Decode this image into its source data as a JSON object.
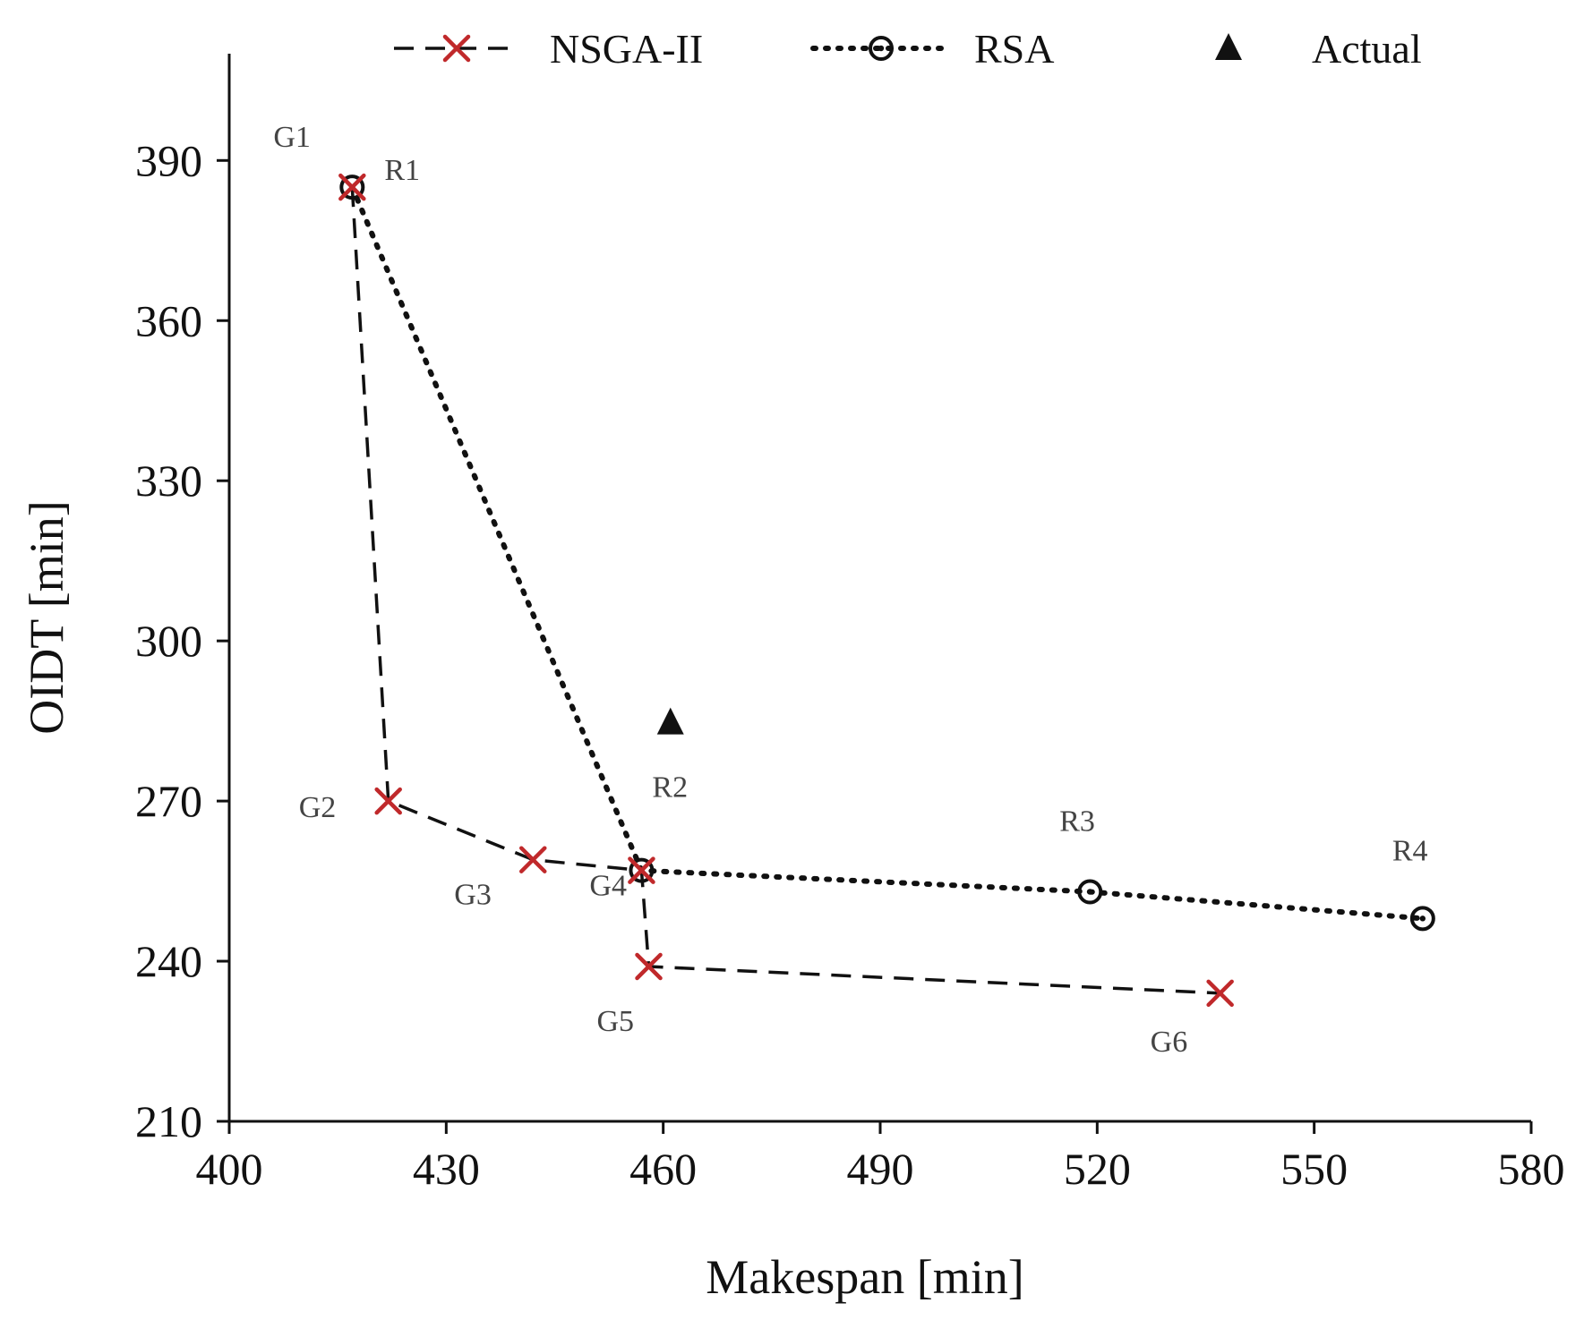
{
  "chart_data": {
    "type": "scatter",
    "title": "",
    "xlabel": "Makespan [min]",
    "ylabel": "OIDT [min]",
    "xlim": [
      400,
      580
    ],
    "ylim": [
      210,
      410
    ],
    "xticks": [
      400,
      430,
      460,
      490,
      520,
      550,
      580
    ],
    "yticks": [
      210,
      240,
      270,
      300,
      330,
      360,
      390
    ],
    "legend_position": "top",
    "series": [
      {
        "name": "NSGA-II",
        "style": "dashed",
        "marker": "x",
        "color": "#c0292b",
        "line_color": "#111111",
        "points": [
          {
            "label": "G1",
            "x": 417,
            "y": 385
          },
          {
            "label": "G2",
            "x": 422,
            "y": 270
          },
          {
            "label": "G3",
            "x": 442,
            "y": 259
          },
          {
            "label": "G4",
            "x": 457,
            "y": 257
          },
          {
            "label": "G5",
            "x": 458,
            "y": 239
          },
          {
            "label": "G6",
            "x": 537,
            "y": 234
          }
        ]
      },
      {
        "name": "RSA",
        "style": "dotted",
        "marker": "circle-dot",
        "color": "#111111",
        "line_color": "#111111",
        "points": [
          {
            "label": "R1",
            "x": 417,
            "y": 385
          },
          {
            "label": "R2",
            "x": 457,
            "y": 257
          },
          {
            "label": "R3",
            "x": 519,
            "y": 253
          },
          {
            "label": "R4",
            "x": 565,
            "y": 248
          }
        ]
      },
      {
        "name": "Actual",
        "style": "none",
        "marker": "triangle",
        "color": "#111111",
        "points": [
          {
            "label": "",
            "x": 461,
            "y": 285
          }
        ]
      }
    ]
  }
}
